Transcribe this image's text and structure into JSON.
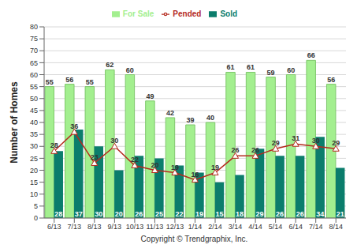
{
  "chart_data": {
    "type": "bar",
    "y_label": "Number of Homes",
    "annotation": "Copyright © Trendgraphix, Inc.",
    "categories": [
      "6/13",
      "7/13",
      "8/13",
      "9/13",
      "10/13",
      "11/13",
      "12/13",
      "1/14",
      "2/14",
      "3/14",
      "4/14",
      "5/14",
      "6/14",
      "7/14",
      "8/14"
    ],
    "series": [
      {
        "name": "For Sale",
        "type": "bar",
        "color": "#a3ef8f",
        "values": [
          55,
          56,
          55,
          62,
          60,
          49,
          42,
          39,
          40,
          61,
          61,
          59,
          60,
          66,
          56
        ]
      },
      {
        "name": "Sold",
        "type": "bar",
        "color": "#0b7d6c",
        "values": [
          28,
          37,
          30,
          20,
          26,
          25,
          22,
          19,
          15,
          18,
          29,
          26,
          26,
          34,
          21
        ]
      },
      {
        "name": "Pended",
        "type": "line",
        "color": "#b52a1e",
        "marker": "triangle",
        "values": [
          28,
          36,
          23,
          30,
          22,
          20,
          19,
          16,
          19,
          26,
          26,
          29,
          31,
          30,
          29
        ]
      }
    ],
    "ylim": [
      0,
      80
    ],
    "yticks": [
      0,
      5,
      10,
      15,
      20,
      25,
      30,
      35,
      40,
      45,
      50,
      55,
      60,
      65,
      70,
      75,
      80
    ],
    "grid": true,
    "legend": "top",
    "data_labels": true
  }
}
